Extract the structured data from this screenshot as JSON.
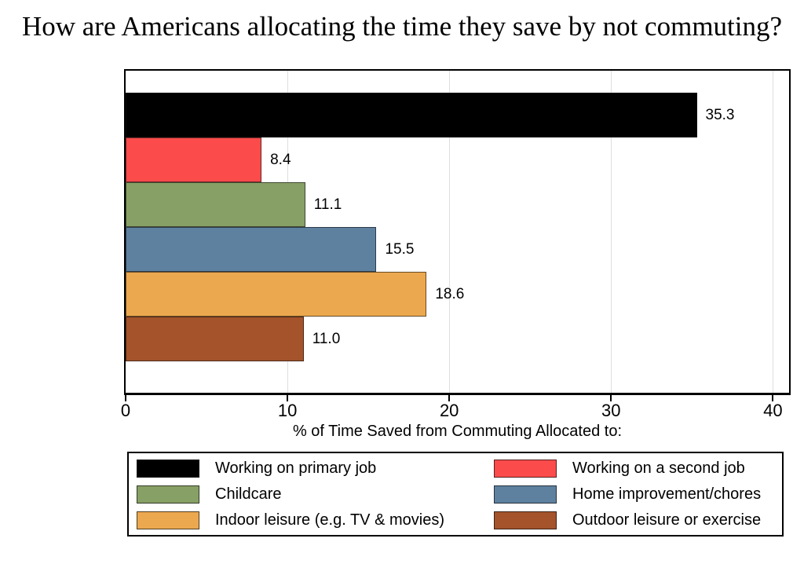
{
  "title": "How are Americans allocating the time they save by not commuting?",
  "chart_data": {
    "type": "bar",
    "orientation": "horizontal",
    "title": "How are Americans allocating the time they save by not commuting?",
    "xlabel": "% of Time Saved from Commuting Allocated to:",
    "ylabel": "",
    "xlim": [
      0,
      41
    ],
    "xticks": [
      0,
      10,
      20,
      30,
      40
    ],
    "grid": "vertical-light-gray",
    "legend_position": "bottom-box-2-columns",
    "categories": [
      "Working on primary job",
      "Working on a second job",
      "Childcare",
      "Home improvement/chores",
      "Indoor leisure (e.g. TV & movies)",
      "Outdoor leisure or exercise"
    ],
    "values": [
      35.3,
      8.4,
      11.1,
      15.5,
      18.6,
      11.0
    ],
    "value_labels": [
      "35.3",
      "8.4",
      "11.1",
      "15.5",
      "18.6",
      "11.0"
    ],
    "colors": [
      "#000000",
      "#fc4b4b",
      "#87a065",
      "#5e81a0",
      "#eca84e",
      "#a4532a"
    ],
    "frame_color": "#000000",
    "gridline_color": "#dedede",
    "background_color": "#ffffff"
  }
}
